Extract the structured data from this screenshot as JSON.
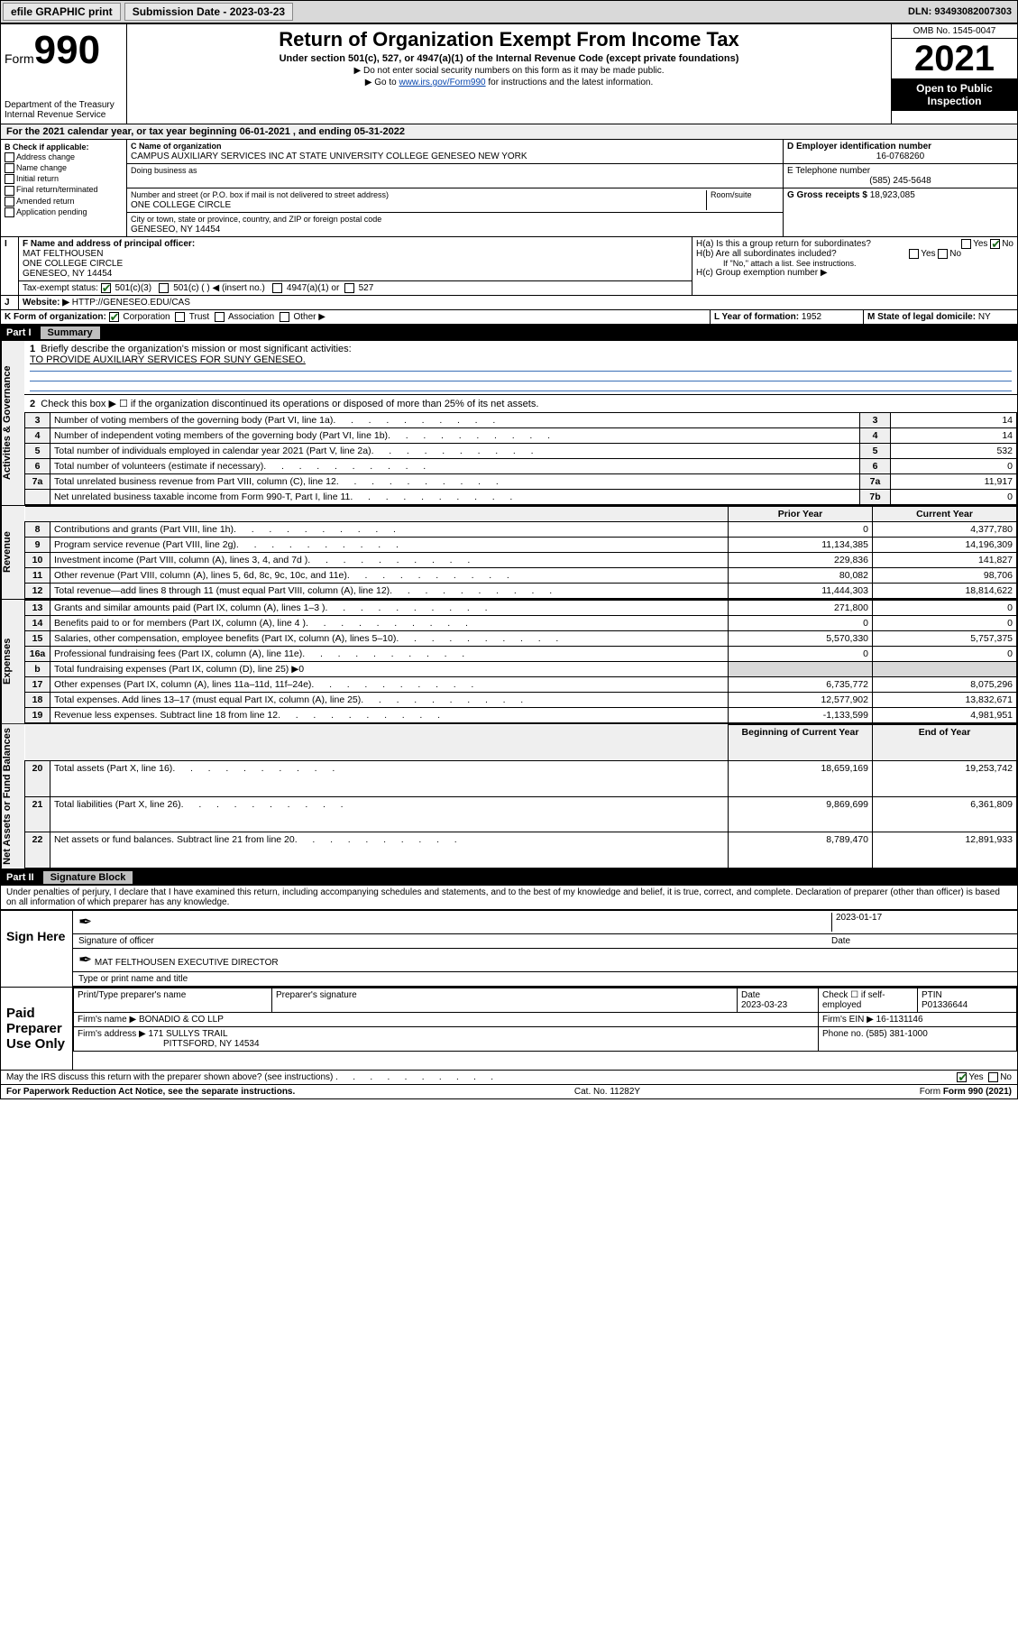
{
  "topbar": {
    "efile": "efile GRAPHIC print",
    "submission_label": "Submission Date - 2023-03-23",
    "dln": "DLN: 93493082007303"
  },
  "header": {
    "form_prefix": "Form",
    "form_number": "990",
    "dept": "Department of the Treasury",
    "irs": "Internal Revenue Service",
    "title": "Return of Organization Exempt From Income Tax",
    "subtitle": "Under section 501(c), 527, or 4947(a)(1) of the Internal Revenue Code (except private foundations)",
    "note1": "▶ Do not enter social security numbers on this form as it may be made public.",
    "note2_pre": "▶ Go to ",
    "note2_link": "www.irs.gov/Form990",
    "note2_post": " for instructions and the latest information.",
    "omb": "OMB No. 1545-0047",
    "year": "2021",
    "open": "Open to Public Inspection"
  },
  "A": {
    "text": "For the 2021 calendar year, or tax year beginning 06-01-2021   , and ending 05-31-2022"
  },
  "B": {
    "label": "B Check if applicable:",
    "items": [
      "Address change",
      "Name change",
      "Initial return",
      "Final return/terminated",
      "Amended return",
      "Application pending"
    ]
  },
  "C": {
    "name_label": "C Name of organization",
    "name": "CAMPUS AUXILIARY SERVICES INC AT STATE UNIVERSITY COLLEGE GENESEO NEW YORK",
    "dba_label": "Doing business as",
    "street_label": "Number and street (or P.O. box if mail is not delivered to street address)",
    "room_label": "Room/suite",
    "street": "ONE COLLEGE CIRCLE",
    "city_label": "City or town, state or province, country, and ZIP or foreign postal code",
    "city": "GENESEO, NY  14454"
  },
  "D": {
    "label": "D Employer identification number",
    "value": "16-0768260"
  },
  "E": {
    "label": "E Telephone number",
    "value": "(585) 245-5648"
  },
  "G": {
    "label": "G Gross receipts $",
    "value": "18,923,085"
  },
  "F": {
    "label": "F  Name and address of principal officer:",
    "name": "MAT FELTHOUSEN",
    "addr1": "ONE COLLEGE CIRCLE",
    "addr2": "GENESEO, NY  14454"
  },
  "H": {
    "a": "H(a)  Is this a group return for subordinates?",
    "b": "H(b)  Are all subordinates included?",
    "b_note": "If \"No,\" attach a list. See instructions.",
    "c": "H(c)  Group exemption number ▶",
    "yes": "Yes",
    "no": "No"
  },
  "I": {
    "label": "Tax-exempt status:",
    "opts": [
      "501(c)(3)",
      "501(c) (  ) ◀ (insert no.)",
      "4947(a)(1) or",
      "527"
    ]
  },
  "J": {
    "label": "Website: ▶",
    "value": "HTTP://GENESEO.EDU/CAS"
  },
  "K": {
    "label": "K Form of organization:",
    "opts": [
      "Corporation",
      "Trust",
      "Association",
      "Other ▶"
    ]
  },
  "L": {
    "label": "L Year of formation:",
    "value": "1952"
  },
  "M": {
    "label": "M State of legal domicile:",
    "value": "NY"
  },
  "partI": {
    "num": "Part I",
    "title": "Summary",
    "sideA": "Activities & Governance",
    "sideR": "Revenue",
    "sideE": "Expenses",
    "sideN": "Net Assets or Fund Balances",
    "line1_label": "Briefly describe the organization's mission or most significant activities:",
    "line1_value": "TO PROVIDE AUXILIARY SERVICES FOR SUNY GENESEO.",
    "line2": "Check this box ▶ ☐  if the organization discontinued its operations or disposed of more than 25% of its net assets.",
    "rowsA": [
      {
        "n": "3",
        "t": "Number of voting members of the governing body (Part VI, line 1a)",
        "b": "3",
        "v": "14"
      },
      {
        "n": "4",
        "t": "Number of independent voting members of the governing body (Part VI, line 1b)",
        "b": "4",
        "v": "14"
      },
      {
        "n": "5",
        "t": "Total number of individuals employed in calendar year 2021 (Part V, line 2a)",
        "b": "5",
        "v": "532"
      },
      {
        "n": "6",
        "t": "Total number of volunteers (estimate if necessary)",
        "b": "6",
        "v": "0"
      },
      {
        "n": "7a",
        "t": "Total unrelated business revenue from Part VIII, column (C), line 12",
        "b": "7a",
        "v": "11,917"
      },
      {
        "n": "",
        "t": "Net unrelated business taxable income from Form 990-T, Part I, line 11",
        "b": "7b",
        "v": "0"
      }
    ],
    "hdr_prior": "Prior Year",
    "hdr_curr": "Current Year",
    "hdr_b": "b",
    "rowsR": [
      {
        "n": "8",
        "t": "Contributions and grants (Part VIII, line 1h)",
        "p": "0",
        "c": "4,377,780"
      },
      {
        "n": "9",
        "t": "Program service revenue (Part VIII, line 2g)",
        "p": "11,134,385",
        "c": "14,196,309"
      },
      {
        "n": "10",
        "t": "Investment income (Part VIII, column (A), lines 3, 4, and 7d )",
        "p": "229,836",
        "c": "141,827"
      },
      {
        "n": "11",
        "t": "Other revenue (Part VIII, column (A), lines 5, 6d, 8c, 9c, 10c, and 11e)",
        "p": "80,082",
        "c": "98,706"
      },
      {
        "n": "12",
        "t": "Total revenue—add lines 8 through 11 (must equal Part VIII, column (A), line 12)",
        "p": "11,444,303",
        "c": "18,814,622"
      }
    ],
    "rowsE": [
      {
        "n": "13",
        "t": "Grants and similar amounts paid (Part IX, column (A), lines 1–3 )",
        "p": "271,800",
        "c": "0"
      },
      {
        "n": "14",
        "t": "Benefits paid to or for members (Part IX, column (A), line 4 )",
        "p": "0",
        "c": "0"
      },
      {
        "n": "15",
        "t": "Salaries, other compensation, employee benefits (Part IX, column (A), lines 5–10)",
        "p": "5,570,330",
        "c": "5,757,375"
      },
      {
        "n": "16a",
        "t": "Professional fundraising fees (Part IX, column (A), line 11e)",
        "p": "0",
        "c": "0"
      },
      {
        "n": "b",
        "t": "Total fundraising expenses (Part IX, column (D), line 25) ▶0",
        "p": "",
        "c": "",
        "grey": true
      },
      {
        "n": "17",
        "t": "Other expenses (Part IX, column (A), lines 11a–11d, 11f–24e)",
        "p": "6,735,772",
        "c": "8,075,296"
      },
      {
        "n": "18",
        "t": "Total expenses. Add lines 13–17 (must equal Part IX, column (A), line 25)",
        "p": "12,577,902",
        "c": "13,832,671"
      },
      {
        "n": "19",
        "t": "Revenue less expenses. Subtract line 18 from line 12",
        "p": "-1,133,599",
        "c": "4,981,951"
      }
    ],
    "hdr_beg": "Beginning of Current Year",
    "hdr_end": "End of Year",
    "rowsN": [
      {
        "n": "20",
        "t": "Total assets (Part X, line 16)",
        "p": "18,659,169",
        "c": "19,253,742"
      },
      {
        "n": "21",
        "t": "Total liabilities (Part X, line 26)",
        "p": "9,869,699",
        "c": "6,361,809"
      },
      {
        "n": "22",
        "t": "Net assets or fund balances. Subtract line 21 from line 20",
        "p": "8,789,470",
        "c": "12,891,933"
      }
    ]
  },
  "partII": {
    "num": "Part II",
    "title": "Signature Block",
    "decl": "Under penalties of perjury, I declare that I have examined this return, including accompanying schedules and statements, and to the best of my knowledge and belief, it is true, correct, and complete. Declaration of preparer (other than officer) is based on all information of which preparer has any knowledge.",
    "sign_here": "Sign Here",
    "sig_officer": "Signature of officer",
    "date_lbl": "Date",
    "date_v": "2023-01-17",
    "name_title": "MAT FELTHOUSEN  EXECUTIVE DIRECTOR",
    "type_lbl": "Type or print name and title",
    "paid": "Paid Preparer Use Only",
    "prep_name_lbl": "Print/Type preparer's name",
    "prep_sig_lbl": "Preparer's signature",
    "prep_date_lbl": "Date",
    "prep_date": "2023-03-23",
    "check_self": "Check ☐ if self-employed",
    "ptin_lbl": "PTIN",
    "ptin": "P01336644",
    "firm_name_lbl": "Firm's name   ▶",
    "firm_name": "BONADIO & CO LLP",
    "firm_ein_lbl": "Firm's EIN ▶",
    "firm_ein": "16-1131146",
    "firm_addr_lbl": "Firm's address ▶",
    "firm_addr1": "171 SULLYS TRAIL",
    "firm_addr2": "PITTSFORD, NY  14534",
    "phone_lbl": "Phone no.",
    "phone": "(585) 381-1000",
    "discuss": "May the IRS discuss this return with the preparer shown above? (see instructions)",
    "yes": "Yes",
    "no": "No"
  },
  "footer": {
    "left": "For Paperwork Reduction Act Notice, see the separate instructions.",
    "mid": "Cat. No. 11282Y",
    "right": "Form 990 (2021)"
  }
}
